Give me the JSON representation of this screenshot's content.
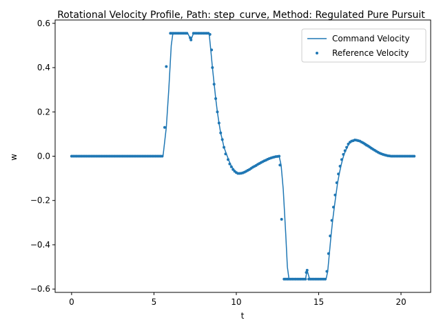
{
  "chart_data": {
    "type": "line",
    "title": "Rotational Velocity Profile, Path: step_curve, Method: Regulated Pure Pursuit",
    "xlabel": "t",
    "ylabel": "w",
    "xlim": [
      -1.0,
      21.8
    ],
    "ylim": [
      -0.615,
      0.615
    ],
    "xticks": [
      0,
      5,
      10,
      15,
      20
    ],
    "xtick_labels": [
      "0",
      "5",
      "10",
      "15",
      "20"
    ],
    "yticks": [
      -0.6,
      -0.4,
      -0.2,
      0.0,
      0.2,
      0.4,
      0.6
    ],
    "ytick_labels": [
      "−0.6",
      "−0.4",
      "−0.2",
      "0.0",
      "0.2",
      "0.4",
      "0.6"
    ],
    "grid": false,
    "legend_position": "top-right",
    "colors": {
      "series": "#1f77b4"
    },
    "series": [
      {
        "name": "Command Velocity",
        "kind": "line",
        "points": [
          [
            0,
            0
          ],
          [
            5.45,
            0
          ],
          [
            5.55,
            0
          ],
          [
            5.75,
            0.13
          ],
          [
            5.9,
            0.3
          ],
          [
            6.05,
            0.5
          ],
          [
            6.15,
            0.555
          ],
          [
            7.05,
            0.555
          ],
          [
            7.25,
            0.525
          ],
          [
            7.4,
            0.555
          ],
          [
            8.35,
            0.555
          ],
          [
            8.45,
            0.48
          ],
          [
            8.55,
            0.4
          ],
          [
            8.65,
            0.33
          ],
          [
            8.75,
            0.26
          ],
          [
            8.85,
            0.2
          ],
          [
            8.95,
            0.15
          ],
          [
            9.05,
            0.105
          ],
          [
            9.15,
            0.075
          ],
          [
            9.25,
            0.04
          ],
          [
            9.4,
            0.01
          ],
          [
            9.55,
            -0.02
          ],
          [
            9.7,
            -0.045
          ],
          [
            9.85,
            -0.06
          ],
          [
            10.0,
            -0.073
          ],
          [
            10.2,
            -0.078
          ],
          [
            10.45,
            -0.075
          ],
          [
            10.75,
            -0.065
          ],
          [
            11.05,
            -0.05
          ],
          [
            11.4,
            -0.035
          ],
          [
            11.75,
            -0.02
          ],
          [
            12.1,
            -0.01
          ],
          [
            12.4,
            -0.003
          ],
          [
            12.6,
            0.0
          ],
          [
            12.72,
            -0.04
          ],
          [
            12.85,
            -0.15
          ],
          [
            13.0,
            -0.35
          ],
          [
            13.1,
            -0.5
          ],
          [
            13.2,
            -0.555
          ],
          [
            14.2,
            -0.555
          ],
          [
            14.3,
            -0.515
          ],
          [
            14.45,
            -0.555
          ],
          [
            15.45,
            -0.555
          ],
          [
            15.55,
            -0.52
          ],
          [
            15.65,
            -0.44
          ],
          [
            15.75,
            -0.36
          ],
          [
            15.85,
            -0.29
          ],
          [
            15.95,
            -0.23
          ],
          [
            16.05,
            -0.175
          ],
          [
            16.15,
            -0.12
          ],
          [
            16.25,
            -0.08
          ],
          [
            16.35,
            -0.045
          ],
          [
            16.45,
            -0.015
          ],
          [
            16.55,
            0.01
          ],
          [
            16.7,
            0.035
          ],
          [
            16.85,
            0.058
          ],
          [
            17.05,
            0.068
          ],
          [
            17.25,
            0.073
          ],
          [
            17.5,
            0.07
          ],
          [
            17.75,
            0.062
          ],
          [
            18.0,
            0.05
          ],
          [
            18.3,
            0.035
          ],
          [
            18.6,
            0.02
          ],
          [
            18.9,
            0.01
          ],
          [
            19.2,
            0.003
          ],
          [
            19.5,
            0.0
          ],
          [
            20.8,
            0.0
          ]
        ]
      },
      {
        "name": "Reference Velocity",
        "kind": "scatter",
        "segments": [
          {
            "x0": 0,
            "x1": 5.5,
            "step": 0.1,
            "y": 0
          },
          {
            "x0": 6.0,
            "x1": 7.0,
            "step": 0.1,
            "y": 0.555
          },
          {
            "x0": 7.4,
            "x1": 8.3,
            "step": 0.1,
            "y": 0.555
          },
          {
            "x0": 12.9,
            "x1": 14.2,
            "step": 0.1,
            "y": -0.555
          },
          {
            "x0": 14.4,
            "x1": 15.4,
            "step": 0.1,
            "y": -0.555
          },
          {
            "x0": 19.5,
            "x1": 20.8,
            "step": 0.1,
            "y": 0
          }
        ],
        "points": [
          [
            5.65,
            0.13
          ],
          [
            5.75,
            0.405
          ],
          [
            7.2,
            0.535
          ],
          [
            7.25,
            0.525
          ],
          [
            8.4,
            0.55
          ],
          [
            8.5,
            0.48
          ],
          [
            8.55,
            0.4
          ],
          [
            8.65,
            0.325
          ],
          [
            8.75,
            0.26
          ],
          [
            8.85,
            0.2
          ],
          [
            8.95,
            0.15
          ],
          [
            9.05,
            0.105
          ],
          [
            9.15,
            0.075
          ],
          [
            9.25,
            0.04
          ],
          [
            9.35,
            0.01
          ],
          [
            9.5,
            -0.015
          ],
          [
            9.6,
            -0.035
          ],
          [
            9.7,
            -0.048
          ],
          [
            9.8,
            -0.06
          ],
          [
            9.9,
            -0.068
          ],
          [
            10.0,
            -0.074
          ],
          [
            10.1,
            -0.078
          ],
          [
            10.2,
            -0.078
          ],
          [
            10.3,
            -0.077
          ],
          [
            10.4,
            -0.075
          ],
          [
            10.5,
            -0.072
          ],
          [
            10.6,
            -0.068
          ],
          [
            10.7,
            -0.064
          ],
          [
            10.8,
            -0.06
          ],
          [
            10.9,
            -0.055
          ],
          [
            11.0,
            -0.05
          ],
          [
            11.1,
            -0.046
          ],
          [
            11.2,
            -0.042
          ],
          [
            11.3,
            -0.037
          ],
          [
            11.4,
            -0.033
          ],
          [
            11.5,
            -0.029
          ],
          [
            11.6,
            -0.025
          ],
          [
            11.7,
            -0.021
          ],
          [
            11.8,
            -0.018
          ],
          [
            11.9,
            -0.014
          ],
          [
            12.0,
            -0.011
          ],
          [
            12.1,
            -0.008
          ],
          [
            12.2,
            -0.006
          ],
          [
            12.3,
            -0.004
          ],
          [
            12.4,
            -0.002
          ],
          [
            12.5,
            -0.001
          ],
          [
            12.6,
            0.0
          ],
          [
            12.65,
            -0.04
          ],
          [
            12.75,
            -0.285
          ],
          [
            14.25,
            -0.525
          ],
          [
            14.3,
            -0.515
          ],
          [
            15.5,
            -0.52
          ],
          [
            15.6,
            -0.44
          ],
          [
            15.7,
            -0.36
          ],
          [
            15.8,
            -0.29
          ],
          [
            15.9,
            -0.23
          ],
          [
            16.0,
            -0.175
          ],
          [
            16.1,
            -0.12
          ],
          [
            16.2,
            -0.08
          ],
          [
            16.3,
            -0.045
          ],
          [
            16.4,
            -0.015
          ],
          [
            16.5,
            0.008
          ],
          [
            16.6,
            0.025
          ],
          [
            16.7,
            0.04
          ],
          [
            16.8,
            0.055
          ],
          [
            16.9,
            0.063
          ],
          [
            17.0,
            0.068
          ],
          [
            17.1,
            0.07
          ],
          [
            17.2,
            0.073
          ],
          [
            17.3,
            0.072
          ],
          [
            17.4,
            0.07
          ],
          [
            17.5,
            0.068
          ],
          [
            17.6,
            0.064
          ],
          [
            17.7,
            0.06
          ],
          [
            17.8,
            0.055
          ],
          [
            17.9,
            0.05
          ],
          [
            18.0,
            0.046
          ],
          [
            18.1,
            0.041
          ],
          [
            18.2,
            0.036
          ],
          [
            18.3,
            0.031
          ],
          [
            18.4,
            0.027
          ],
          [
            18.5,
            0.022
          ],
          [
            18.6,
            0.018
          ],
          [
            18.7,
            0.014
          ],
          [
            18.8,
            0.011
          ],
          [
            18.9,
            0.008
          ],
          [
            19.0,
            0.006
          ],
          [
            19.1,
            0.004
          ],
          [
            19.2,
            0.002
          ],
          [
            19.3,
            0.001
          ],
          [
            19.4,
            0.0
          ]
        ]
      }
    ]
  }
}
